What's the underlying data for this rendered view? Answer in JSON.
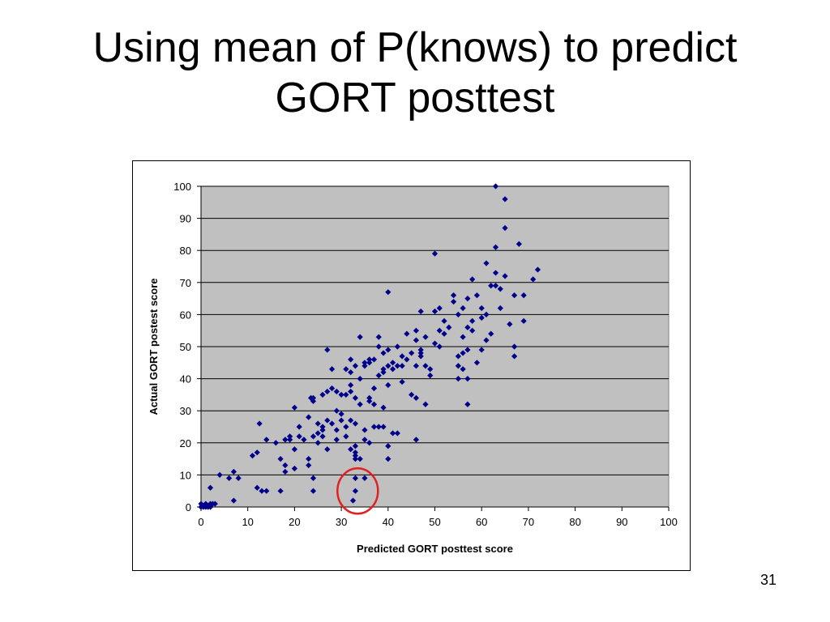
{
  "slide": {
    "title_line1": "Using mean of P(knows) to predict",
    "title_line2": "GORT posttest",
    "page_number": "31"
  },
  "colors": {
    "plot_background": "#c0c0c0",
    "marker": "#00008b",
    "highlight_circle": "#e32020",
    "gridline": "#000000"
  },
  "chart_data": {
    "type": "scatter",
    "title": "",
    "xlabel": "Predicted GORT posttest  score",
    "ylabel": "Actual GORT postest score",
    "xlim": [
      0,
      100
    ],
    "ylim": [
      0,
      100
    ],
    "x_ticks": [
      0,
      10,
      20,
      30,
      40,
      50,
      60,
      70,
      80,
      90,
      100
    ],
    "y_ticks": [
      0,
      10,
      20,
      30,
      40,
      50,
      60,
      70,
      80,
      90,
      100
    ],
    "grid": "horizontal",
    "legend": "none",
    "marker": "diamond",
    "annotation": {
      "shape": "circle",
      "center": [
        33.5,
        5
      ],
      "note": "red circle around low actual scores"
    },
    "series": [
      {
        "points": [
          [
            0,
            0
          ],
          [
            0,
            1
          ],
          [
            0.5,
            0
          ],
          [
            1,
            0
          ],
          [
            1,
            1
          ],
          [
            1.5,
            0
          ],
          [
            2,
            1
          ],
          [
            2,
            0
          ],
          [
            2.5,
            1
          ],
          [
            3,
            1
          ],
          [
            2,
            6
          ],
          [
            4,
            10
          ],
          [
            6,
            9
          ],
          [
            7,
            11
          ],
          [
            7,
            2
          ],
          [
            8,
            9
          ],
          [
            11,
            16
          ],
          [
            12,
            17
          ],
          [
            12,
            6
          ],
          [
            12.5,
            26
          ],
          [
            13,
            5
          ],
          [
            14,
            5
          ],
          [
            14,
            21
          ],
          [
            16,
            20
          ],
          [
            17,
            15
          ],
          [
            17,
            5
          ],
          [
            18,
            21
          ],
          [
            18,
            11
          ],
          [
            18,
            13
          ],
          [
            19,
            22
          ],
          [
            19,
            21
          ],
          [
            20,
            31
          ],
          [
            20,
            12
          ],
          [
            20,
            18
          ],
          [
            21,
            22
          ],
          [
            21,
            25
          ],
          [
            22,
            21
          ],
          [
            23,
            13
          ],
          [
            23,
            15
          ],
          [
            23,
            28
          ],
          [
            23.5,
            34
          ],
          [
            24,
            5
          ],
          [
            24,
            9
          ],
          [
            24,
            34
          ],
          [
            24,
            33
          ],
          [
            24,
            22
          ],
          [
            25,
            20
          ],
          [
            25,
            23
          ],
          [
            25,
            26
          ],
          [
            26,
            22
          ],
          [
            26,
            25
          ],
          [
            26,
            35
          ],
          [
            26,
            24
          ],
          [
            27,
            49
          ],
          [
            27,
            36
          ],
          [
            27,
            27
          ],
          [
            27,
            18
          ],
          [
            28,
            26
          ],
          [
            28,
            37
          ],
          [
            28,
            43
          ],
          [
            29,
            30
          ],
          [
            29,
            24
          ],
          [
            29,
            21
          ],
          [
            29,
            36
          ],
          [
            30,
            35
          ],
          [
            30,
            29
          ],
          [
            30,
            27
          ],
          [
            31,
            43
          ],
          [
            31,
            22
          ],
          [
            31,
            25
          ],
          [
            31,
            35
          ],
          [
            32,
            46
          ],
          [
            32,
            38
          ],
          [
            32,
            36
          ],
          [
            32,
            42
          ],
          [
            32,
            27
          ],
          [
            32,
            18
          ],
          [
            33,
            44
          ],
          [
            33,
            34
          ],
          [
            33,
            26
          ],
          [
            33,
            19
          ],
          [
            33,
            16
          ],
          [
            33,
            15
          ],
          [
            33,
            9
          ],
          [
            33,
            5
          ],
          [
            32.5,
            2
          ],
          [
            33,
            17
          ],
          [
            34,
            53
          ],
          [
            34,
            40
          ],
          [
            34,
            32
          ],
          [
            34,
            15
          ],
          [
            35,
            45
          ],
          [
            35,
            44
          ],
          [
            35,
            24
          ],
          [
            35,
            21
          ],
          [
            35,
            9
          ],
          [
            36,
            46
          ],
          [
            36,
            45
          ],
          [
            36,
            34
          ],
          [
            36,
            33
          ],
          [
            36,
            20
          ],
          [
            37,
            46
          ],
          [
            37,
            37
          ],
          [
            37,
            32
          ],
          [
            37,
            25
          ],
          [
            38,
            53
          ],
          [
            38,
            41
          ],
          [
            38,
            50
          ],
          [
            38,
            25
          ],
          [
            39,
            48
          ],
          [
            39,
            43
          ],
          [
            39,
            42
          ],
          [
            39,
            31
          ],
          [
            39,
            25
          ],
          [
            40,
            67
          ],
          [
            40,
            49
          ],
          [
            40,
            44
          ],
          [
            40,
            38
          ],
          [
            40,
            19
          ],
          [
            40,
            15
          ],
          [
            41,
            45
          ],
          [
            41,
            43
          ],
          [
            41,
            23
          ],
          [
            42,
            50
          ],
          [
            42,
            44
          ],
          [
            42,
            23
          ],
          [
            43,
            47
          ],
          [
            43,
            44
          ],
          [
            43,
            39
          ],
          [
            44,
            54
          ],
          [
            44,
            46
          ],
          [
            45,
            48
          ],
          [
            45,
            35
          ],
          [
            46,
            55
          ],
          [
            46,
            52
          ],
          [
            46,
            44
          ],
          [
            46,
            34
          ],
          [
            46,
            21
          ],
          [
            47,
            61
          ],
          [
            47,
            49
          ],
          [
            47,
            48
          ],
          [
            47,
            47
          ],
          [
            48,
            53
          ],
          [
            48,
            44
          ],
          [
            48,
            32
          ],
          [
            49,
            41
          ],
          [
            49,
            43
          ],
          [
            50,
            61
          ],
          [
            50,
            51
          ],
          [
            50,
            79
          ],
          [
            51,
            62
          ],
          [
            51,
            55
          ],
          [
            51,
            50
          ],
          [
            52,
            58
          ],
          [
            52,
            54
          ],
          [
            53,
            56
          ],
          [
            54,
            66
          ],
          [
            54,
            64
          ],
          [
            55,
            60
          ],
          [
            55,
            47
          ],
          [
            55,
            44
          ],
          [
            55,
            40
          ],
          [
            56,
            62
          ],
          [
            56,
            53
          ],
          [
            56,
            48
          ],
          [
            56,
            43
          ],
          [
            57,
            65
          ],
          [
            57,
            56
          ],
          [
            57,
            49
          ],
          [
            57,
            40
          ],
          [
            57,
            32
          ],
          [
            58,
            71
          ],
          [
            58,
            58
          ],
          [
            58,
            55
          ],
          [
            59,
            66
          ],
          [
            59,
            45
          ],
          [
            60,
            62
          ],
          [
            60,
            59
          ],
          [
            60,
            49
          ],
          [
            61,
            76
          ],
          [
            61,
            60
          ],
          [
            61,
            52
          ],
          [
            62,
            69
          ],
          [
            62,
            54
          ],
          [
            63,
            100
          ],
          [
            63,
            73
          ],
          [
            63,
            69
          ],
          [
            63,
            81
          ],
          [
            64,
            68
          ],
          [
            64,
            62
          ],
          [
            65,
            87
          ],
          [
            65,
            72
          ],
          [
            65,
            96
          ],
          [
            66,
            57
          ],
          [
            67,
            66
          ],
          [
            67,
            50
          ],
          [
            67,
            47
          ],
          [
            68,
            82
          ],
          [
            69,
            66
          ],
          [
            69,
            58
          ],
          [
            71,
            71
          ],
          [
            72,
            74
          ]
        ]
      }
    ]
  }
}
